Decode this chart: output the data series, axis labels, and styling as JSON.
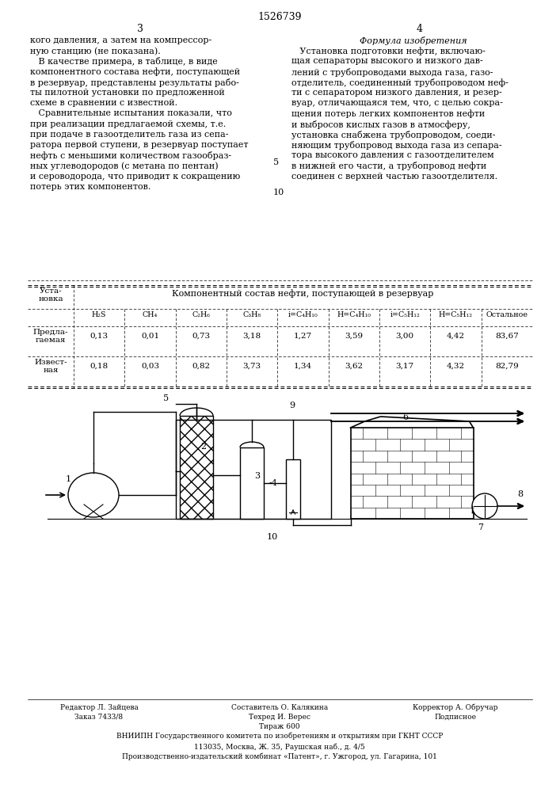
{
  "title": "1526739",
  "page_left": "3",
  "page_right": "4",
  "table_main_header": "Компонентный состав нефти, поступающей в резервуар",
  "col_headers": [
    "H₂S",
    "CH₄",
    "C₂H₆",
    "C₃H₈",
    "i=C₄H₁₀",
    "H=C₄H₁₀",
    "i=C₅H₁₂",
    "H=C₅H₁₂",
    "Остальное"
  ],
  "row1_values": [
    "0,13",
    "0,01",
    "0,73",
    "3,18",
    "1,27",
    "3,59",
    "3,00",
    "4,42",
    "83,67"
  ],
  "row2_values": [
    "0,18",
    "0,03",
    "0,82",
    "3,73",
    "1,34",
    "3,62",
    "3,17",
    "4,32",
    "82,79"
  ],
  "left_col_text": [
    "кого давления, а затем на компрессор-",
    "ную станцию (не показана).",
    "   В качестве примера, в таблице, в виде",
    "компонентного состава нефти, поступающей",
    "в резервуар, представлены результаты рабо-",
    "ты пилотной установки по предложенной",
    "схеме в сравнении с известной.",
    "   Сравнительные испытания показали, что",
    "при реализации предлагаемой схемы, т.е.",
    "при подаче в газоотделитель газа из сепа-",
    "ратора первой ступени, в резервуар поступает",
    "нефть с меньшими количеством газообраз-",
    "ных углеводородов (с метана по пентан)",
    "и сероводорода, что приводит к сокращению",
    "потерь этих компонентов."
  ],
  "right_col_title": "Формула изобретения",
  "right_col_text": [
    "   Установка подготовки нефти, включаю-",
    "щая сепараторы высокого и низкого дав-",
    "лений с трубопроводами выхода газа, газо-",
    "отделитель, соединенный трубопроводом неф-",
    "ти с сепаратором низкого давления, и резер-",
    "вуар, отличающаяся тем, что, с целью сокра-",
    "щения потерь легких компонентов нефти",
    "и выбросов кислых газов в атмосферу,",
    "установка снабжена трубопроводом, соеди-",
    "няющим трубопровод выхода газа из сепара-",
    "тора высокого давления с газоотделителем",
    "в нижней его части, а трубопровод нефти",
    "соединен с верхней частью газоотделителя."
  ],
  "footnote_5": "5",
  "footnote_10": "10",
  "bg_color": "#ffffff"
}
